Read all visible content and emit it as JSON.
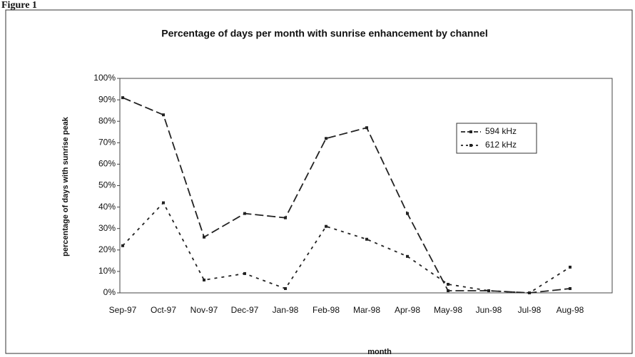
{
  "figure_label": "Figure 1",
  "chart_data": {
    "type": "line",
    "title": "Percentage of days per month with sunrise enhancement by channel",
    "x_label": "month",
    "y_label": "percentage of days with sunrise peak",
    "categories": [
      "Sep-97",
      "Oct-97",
      "Nov-97",
      "Dec-97",
      "Jan-98",
      "Feb-98",
      "Mar-98",
      "Apr-98",
      "May-98",
      "Jun-98",
      "Jul-98",
      "Aug-98"
    ],
    "series": [
      {
        "name": "594 kHz",
        "color": "#222222",
        "dash": "12,5",
        "values": [
          91,
          83,
          26,
          37,
          35,
          72,
          77,
          37,
          1,
          1,
          0,
          2
        ]
      },
      {
        "name": "612 kHz",
        "color": "#222222",
        "dash": "4,6",
        "values": [
          22,
          42,
          6,
          9,
          2,
          31,
          25,
          17,
          4,
          1,
          0,
          12
        ]
      }
    ],
    "ylim": [
      0,
      100
    ],
    "yticks": [
      {
        "value": 0,
        "label": "0%"
      },
      {
        "value": 10,
        "label": "10%"
      },
      {
        "value": 20,
        "label": "20%"
      },
      {
        "value": 30,
        "label": "30%"
      },
      {
        "value": 40,
        "label": "40%"
      },
      {
        "value": 50,
        "label": "50%"
      },
      {
        "value": 60,
        "label": "60%"
      },
      {
        "value": 70,
        "label": "70%"
      },
      {
        "value": 80,
        "label": "80%"
      },
      {
        "value": 90,
        "label": "90%"
      },
      {
        "value": 100,
        "label": "100%"
      }
    ],
    "grid": false,
    "legend": "upper-right"
  }
}
